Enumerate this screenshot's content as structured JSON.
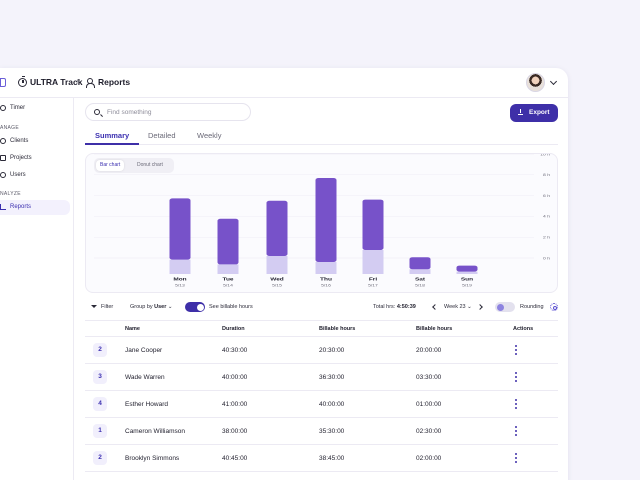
{
  "header": {
    "app_title": "ULTRA Track",
    "separator": "/",
    "page": "Reports"
  },
  "sidebar": {
    "timer": "Timer",
    "section_manage": "ANAGE",
    "clients": "Clients",
    "projects": "Projects",
    "users": "Users",
    "section_analyze": "NALYZE",
    "reports": "Reports"
  },
  "search": {
    "placeholder": "Find something"
  },
  "export": {
    "label": "Export"
  },
  "tabs": [
    {
      "label": "Summary"
    },
    {
      "label": "Detailed"
    },
    {
      "label": "Weekly"
    }
  ],
  "chart_toggle": {
    "bar": "Bar chart",
    "donut": "Donut chart"
  },
  "chart_data": {
    "type": "bar",
    "stacked": true,
    "categories": [
      "Mon",
      "Tue",
      "Wed",
      "Thu",
      "Fri",
      "Sat",
      "Sun"
    ],
    "dates": [
      "5/13",
      "5/14",
      "5/15",
      "5/16",
      "5/17",
      "5/18",
      "5/19"
    ],
    "yticks": [
      "10 h",
      "8 h",
      "6 h",
      "4 h",
      "2 h",
      "0 h"
    ],
    "series": [
      {
        "values": [
          1.2,
          0.8,
          1.5,
          1.0,
          2.0,
          0.4,
          0.2
        ]
      },
      {
        "values": [
          5.1,
          3.8,
          4.6,
          7.0,
          4.2,
          1.0,
          0.5
        ]
      }
    ],
    "colors": [
      "#d3ccf2",
      "#7752c9"
    ],
    "ylim": [
      0,
      10
    ],
    "grid": true
  },
  "controls": {
    "filter": "Filter",
    "group_by": "Group by",
    "group_value": "User",
    "billable": "See billable hours",
    "total_label": "Total hrs:",
    "total_value": "4:50:39",
    "week": "Week 23",
    "rounding": "Rounding"
  },
  "table": {
    "headers": [
      "Name",
      "Duration",
      "Billable hours",
      "Billable hours",
      "Actions"
    ],
    "rows": [
      {
        "badge": "2",
        "name": "Jane Cooper",
        "duration": "40:30:00",
        "billable1": "20:30:00",
        "billable2": "20:00:00"
      },
      {
        "badge": "3",
        "name": "Wade Warren",
        "duration": "40:00:00",
        "billable1": "36:30:00",
        "billable2": "03:30:00"
      },
      {
        "badge": "4",
        "name": "Esther Howard",
        "duration": "41:00:00",
        "billable1": "40:00:00",
        "billable2": "01:00:00"
      },
      {
        "badge": "1",
        "name": "Cameron Williamson",
        "duration": "38:00:00",
        "billable1": "35:30:00",
        "billable2": "02:30:00"
      },
      {
        "badge": "2",
        "name": "Brooklyn Simmons",
        "duration": "40:45:00",
        "billable1": "38:45:00",
        "billable2": "02:00:00"
      }
    ]
  }
}
